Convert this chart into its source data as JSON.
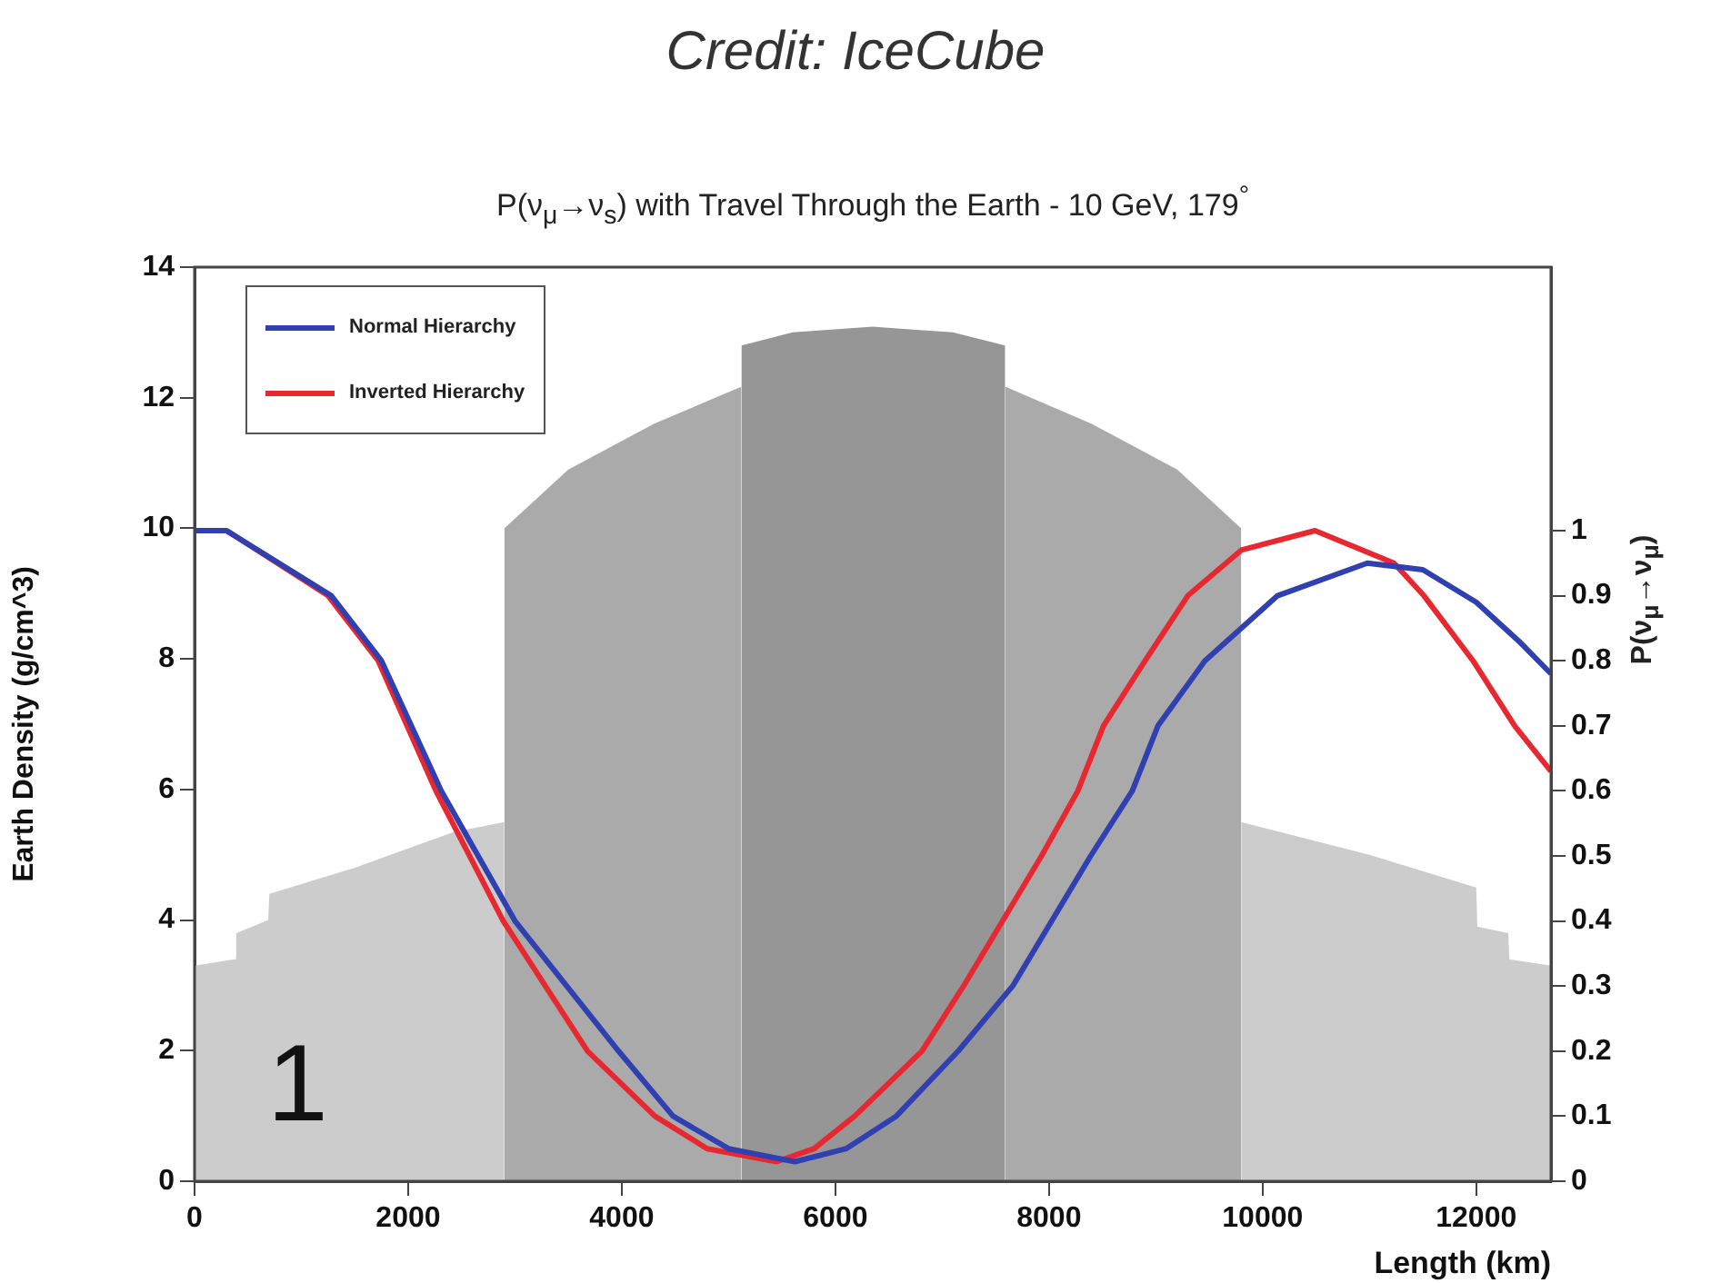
{
  "chart_data": {
    "type": "line",
    "title": "P(ν$_{μ}$→ν$_{s}$) with Travel Through the Earth - 10 GeV, 179$^{°}$",
    "xlabel": "Length (km)",
    "ylabel": "Earth Density (g/cm^3)",
    "y2label": "P(ν$_{μ}$→ν$_{μ}$)",
    "annotations": [
      "Credit: IceCube",
      "1"
    ],
    "xlim": [
      0,
      12700
    ],
    "xticks": [
      0,
      2000,
      4000,
      6000,
      8000,
      10000,
      12000
    ],
    "ylim": [
      0,
      14
    ],
    "yticks": [
      0,
      2,
      4,
      6,
      8,
      10,
      12,
      14
    ],
    "y2lim": [
      0,
      1.405
    ],
    "y2ticks": [
      0,
      0.1,
      0.2,
      0.3,
      0.4,
      0.5,
      0.6,
      0.7,
      0.8,
      0.9,
      1
    ],
    "grid": false,
    "legend": "top left",
    "marker": "none",
    "line_style": "solid",
    "series": [
      {
        "type": "area",
        "color": "#cccccc",
        "x": [
          0,
          380,
          390,
          690,
          700,
          1500,
          2430,
          2900
        ],
        "values": [
          3.3,
          3.4,
          3.8,
          4.0,
          4.4,
          4.8,
          5.35,
          5.5
        ]
      },
      {
        "type": "area",
        "color": "#cccccc",
        "x": [
          9800,
          11000,
          12000,
          12010,
          12300,
          12310,
          12700
        ],
        "values": [
          5.5,
          5.0,
          4.5,
          3.9,
          3.8,
          3.4,
          3.3
        ]
      },
      {
        "type": "area",
        "color": "#aaaaaa",
        "x": [
          2900,
          3500,
          4300,
          5120
        ],
        "values": [
          10.0,
          10.9,
          11.6,
          12.17
        ]
      },
      {
        "type": "area",
        "color": "#aaaaaa",
        "x": [
          7590,
          8400,
          9200,
          9800
        ],
        "values": [
          12.17,
          11.6,
          10.9,
          10.0
        ]
      },
      {
        "type": "area",
        "color": "#969696",
        "x": [
          5120,
          5600,
          6350,
          7100,
          7590
        ],
        "values": [
          12.8,
          13.0,
          13.09,
          13.0,
          12.8
        ]
      },
      {
        "name": "Normal Hierarchy",
        "color": "#3040b0",
        "axis": "y2",
        "x": [
          0,
          300,
          1280,
          1750,
          2310,
          3000,
          3970,
          4480,
          5000,
          5620,
          6100,
          6570,
          7150,
          7660,
          8390,
          8780,
          9020,
          9460,
          10140,
          10980,
          11500,
          12000,
          12400,
          12700
        ],
        "values": [
          1.0,
          1.0,
          0.9,
          0.8,
          0.6,
          0.4,
          0.2,
          0.1,
          0.05,
          0.03,
          0.05,
          0.1,
          0.2,
          0.3,
          0.5,
          0.6,
          0.7,
          0.8,
          0.9,
          0.95,
          0.94,
          0.89,
          0.83,
          0.78
        ]
      },
      {
        "name": "Inverted Hierarchy",
        "color": "#e82830",
        "axis": "y2",
        "x": [
          300,
          1250,
          1720,
          2260,
          2890,
          3680,
          4310,
          4800,
          5450,
          5800,
          6180,
          6810,
          7200,
          7930,
          8270,
          8510,
          8900,
          9300,
          9800,
          10490,
          11230,
          11510,
          11970,
          12360,
          12700
        ],
        "values": [
          1.0,
          0.9,
          0.8,
          0.6,
          0.4,
          0.2,
          0.1,
          0.05,
          0.03,
          0.05,
          0.1,
          0.2,
          0.3,
          0.5,
          0.6,
          0.7,
          0.8,
          0.9,
          0.97,
          1.0,
          0.95,
          0.9,
          0.8,
          0.7,
          0.63
        ]
      }
    ]
  }
}
